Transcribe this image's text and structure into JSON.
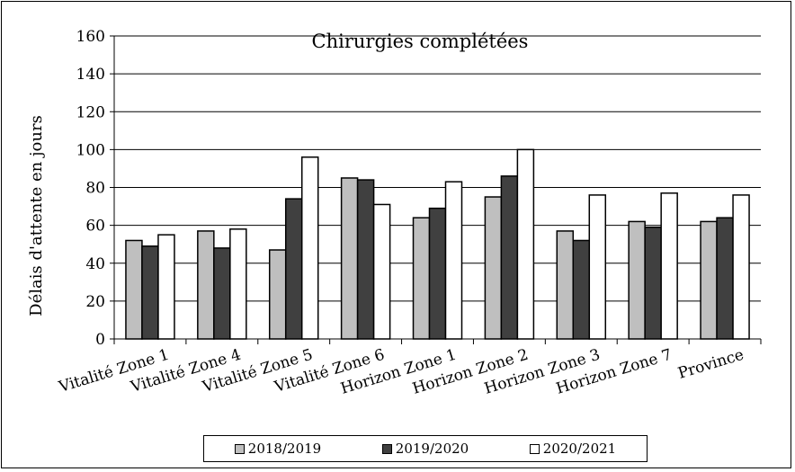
{
  "chart_data": {
    "type": "bar",
    "title": "Chirurgies complétées",
    "ylabel": "Délais d'attente en jours",
    "xlabel": "",
    "ylim": [
      0,
      160
    ],
    "yticks": [
      0,
      20,
      40,
      60,
      80,
      100,
      120,
      140,
      160
    ],
    "grid": true,
    "legend_position": "bottom",
    "categories": [
      "Vitalité Zone 1",
      "Vitalité Zone 4",
      "Vitalité Zone 5",
      "Vitalité Zone 6",
      "Horizon Zone 1",
      "Horizon Zone 2",
      "Horizon Zone 3",
      "Horizon Zone 7",
      "Province"
    ],
    "series": [
      {
        "name": "2018/2019",
        "color": "#bfbfbf",
        "values": [
          52,
          57,
          47,
          85,
          64,
          75,
          57,
          62,
          62
        ]
      },
      {
        "name": "2019/2020",
        "color": "#404040",
        "values": [
          49,
          48,
          74,
          84,
          69,
          86,
          52,
          59,
          64
        ]
      },
      {
        "name": "2020/2021",
        "color": "#ffffff",
        "values": [
          55,
          58,
          96,
          71,
          83,
          100,
          76,
          77,
          76
        ]
      }
    ]
  }
}
